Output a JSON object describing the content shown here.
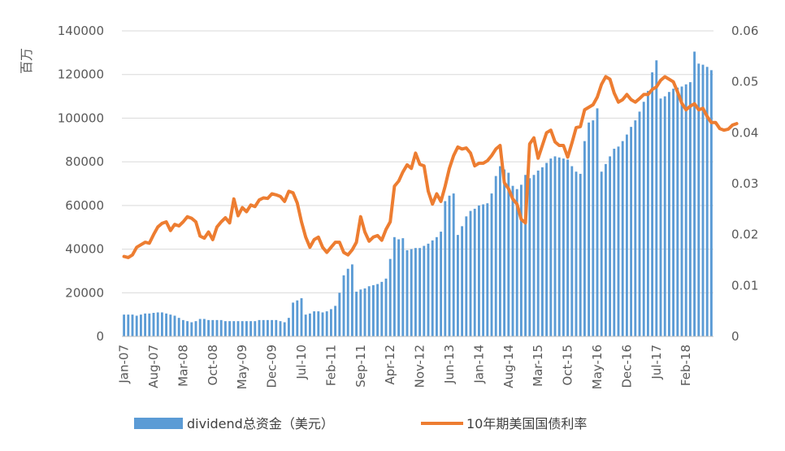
{
  "chart_data": {
    "type": "bar+line",
    "y_axis_label": "百万",
    "y_left": {
      "min": 0,
      "max": 140000,
      "ticks": [
        "0",
        "20000",
        "40000",
        "60000",
        "80000",
        "100000",
        "120000",
        "140000"
      ]
    },
    "y_right": {
      "min": 0,
      "max": 0.06,
      "ticks": [
        "0",
        "0.01",
        "0.02",
        "0.03",
        "0.04",
        "0.05",
        "0.06"
      ]
    },
    "x_tick_labels": [
      "Jan-07",
      "Aug-07",
      "Mar-08",
      "Oct-08",
      "May-09",
      "Dec-09",
      "Jul-10",
      "Feb-11",
      "Sep-11",
      "Apr-12",
      "Nov-12",
      "Jun-13",
      "Jan-14",
      "Aug-14",
      "Mar-15",
      "Oct-15",
      "May-16",
      "Dec-16",
      "Jul-17",
      "Feb-18"
    ],
    "grid": true,
    "legend_position": "bottom",
    "colors": {
      "bars": "#5b9bd5",
      "line": "#ed7d31"
    },
    "series": [
      {
        "name": "dividend总资金（美元）",
        "kind": "bar",
        "axis": "left",
        "start": "Jan-07",
        "frequency": "monthly",
        "values": [
          10000,
          10000,
          10000,
          9500,
          10000,
          10500,
          10500,
          10800,
          11000,
          11000,
          10500,
          10000,
          9500,
          8500,
          7500,
          7000,
          6500,
          7000,
          8000,
          8000,
          7500,
          7500,
          7500,
          7500,
          7000,
          7000,
          7000,
          7000,
          7000,
          7000,
          7000,
          7000,
          7500,
          7500,
          7500,
          7500,
          7500,
          7000,
          6500,
          8500,
          15500,
          16500,
          17500,
          10000,
          10500,
          11500,
          11500,
          11000,
          11500,
          12500,
          14000,
          20000,
          28000,
          31000,
          33000,
          20500,
          21500,
          22000,
          23000,
          23500,
          24000,
          25000,
          26500,
          35500,
          45500,
          44500,
          45000,
          39500,
          40000,
          40500,
          40500,
          41500,
          42500,
          44000,
          45500,
          48000,
          62000,
          64500,
          65500,
          46500,
          50500,
          55000,
          57500,
          58500,
          60000,
          60500,
          61000,
          65500,
          73500,
          78000,
          76500,
          75000,
          69000,
          67500,
          69500,
          74000,
          72500,
          74000,
          76000,
          77500,
          79500,
          81500,
          82500,
          82000,
          81500,
          81000,
          78000,
          75500,
          74500,
          89500,
          98000,
          99000,
          104500,
          75500,
          79000,
          82500,
          86000,
          87000,
          89500,
          92500,
          96000,
          99000,
          103000,
          107500,
          112500,
          121000,
          126500,
          109000,
          110000,
          112000,
          113500,
          114000,
          114500,
          115500,
          116500,
          130500,
          125000,
          124500,
          123500,
          122000
        ]
      },
      {
        "name": "10年期美国国债利率",
        "kind": "line",
        "axis": "right",
        "start": "Jan-07",
        "frequency": "monthly",
        "values": [
          0.0157,
          0.0155,
          0.016,
          0.0175,
          0.018,
          0.0185,
          0.0183,
          0.02,
          0.0215,
          0.0222,
          0.0225,
          0.0208,
          0.022,
          0.0217,
          0.0225,
          0.0235,
          0.0232,
          0.0225,
          0.0197,
          0.0193,
          0.0205,
          0.019,
          0.0215,
          0.0225,
          0.0233,
          0.0223,
          0.027,
          0.0237,
          0.0253,
          0.0245,
          0.0258,
          0.0255,
          0.0268,
          0.0272,
          0.0271,
          0.028,
          0.0278,
          0.0275,
          0.0265,
          0.0285,
          0.0282,
          0.0262,
          0.0225,
          0.0195,
          0.0175,
          0.019,
          0.0195,
          0.0175,
          0.0165,
          0.0175,
          0.0185,
          0.0185,
          0.0165,
          0.016,
          0.017,
          0.0185,
          0.0235,
          0.0205,
          0.0187,
          0.0195,
          0.0198,
          0.0189,
          0.021,
          0.0225,
          0.0295,
          0.0305,
          0.0323,
          0.0337,
          0.033,
          0.036,
          0.0338,
          0.0335,
          0.0285,
          0.026,
          0.028,
          0.0265,
          0.0295,
          0.033,
          0.0355,
          0.0372,
          0.0368,
          0.037,
          0.036,
          0.0335,
          0.034,
          0.034,
          0.0345,
          0.0355,
          0.0368,
          0.0375,
          0.0302,
          0.029,
          0.027,
          0.026,
          0.023,
          0.0223,
          0.0378,
          0.039,
          0.035,
          0.0375,
          0.04,
          0.0405,
          0.0382,
          0.0375,
          0.0375,
          0.0352,
          0.038,
          0.041,
          0.0412,
          0.0445,
          0.045,
          0.0455,
          0.047,
          0.0495,
          0.051,
          0.0505,
          0.0478,
          0.046,
          0.0465,
          0.0475,
          0.0465,
          0.046,
          0.0467,
          0.0475,
          0.0475,
          0.0485,
          0.049,
          0.0503,
          0.051,
          0.0505,
          0.05,
          0.048,
          0.0458,
          0.0445,
          0.0452,
          0.0457,
          0.0445,
          0.0448,
          0.0432,
          0.042,
          0.042,
          0.0408,
          0.0405,
          0.0407,
          0.0415,
          0.0418
        ]
      }
    ]
  }
}
